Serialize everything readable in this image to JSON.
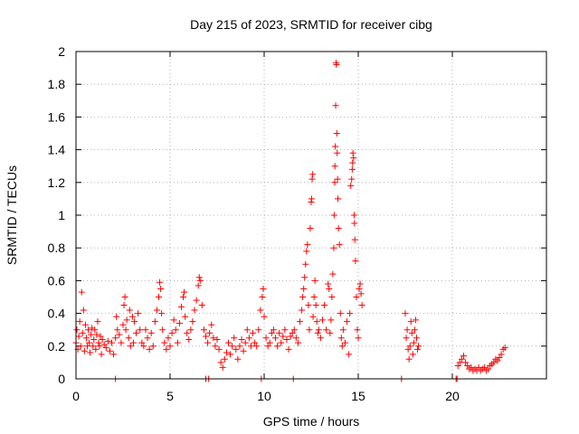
{
  "chart_data": {
    "type": "scatter",
    "title": "Day 215 of 2023, SRMTID for receiver cibg",
    "xlabel": "GPS time / hours",
    "ylabel": "SRMTID / TECUs",
    "xlim": [
      0,
      25
    ],
    "ylim": [
      0,
      2
    ],
    "grid": true,
    "marker": "+",
    "xticks": [
      0,
      5,
      10,
      15,
      20
    ],
    "xtick_labels": [
      "0",
      "5",
      "10",
      "15",
      "20"
    ],
    "yticks": [
      0,
      0.2,
      0.4,
      0.6,
      0.8,
      1,
      1.2,
      1.4,
      1.6,
      1.8,
      2
    ],
    "ytick_labels": [
      "0",
      "0.2",
      "0.4",
      "0.6",
      "0.8",
      "1",
      "1.2",
      "1.4",
      "1.6",
      "1.8",
      "2"
    ],
    "series": [
      {
        "name": "SRMTID",
        "color": "#ff0000",
        "points": [
          [
            0.0,
            0.22
          ],
          [
            0.05,
            0.3
          ],
          [
            0.1,
            0.18
          ],
          [
            0.15,
            0.26
          ],
          [
            0.2,
            0.35
          ],
          [
            0.25,
            0.2
          ],
          [
            0.3,
            0.53
          ],
          [
            0.35,
            0.28
          ],
          [
            0.4,
            0.42
          ],
          [
            0.45,
            0.17
          ],
          [
            0.5,
            0.33
          ],
          [
            0.55,
            0.25
          ],
          [
            0.6,
            0.2
          ],
          [
            0.65,
            0.3
          ],
          [
            0.7,
            0.22
          ],
          [
            0.75,
            0.16
          ],
          [
            0.8,
            0.27
          ],
          [
            0.85,
            0.31
          ],
          [
            0.9,
            0.2
          ],
          [
            0.95,
            0.24
          ],
          [
            1.0,
            0.3
          ],
          [
            1.05,
            0.18
          ],
          [
            1.1,
            0.27
          ],
          [
            1.15,
            0.35
          ],
          [
            1.2,
            0.22
          ],
          [
            1.25,
            0.2
          ],
          [
            1.3,
            0.26
          ],
          [
            1.35,
            0.15
          ],
          [
            1.4,
            0.24
          ],
          [
            1.5,
            0.21
          ],
          [
            1.6,
            0.19
          ],
          [
            1.7,
            0.23
          ],
          [
            1.8,
            0.17
          ],
          [
            1.9,
            0.22
          ],
          [
            2.0,
            0.15
          ],
          [
            2.1,
            0.25
          ],
          [
            2.15,
            0.38
          ],
          [
            2.2,
            0.3
          ],
          [
            2.3,
            0.27
          ],
          [
            2.4,
            0.22
          ],
          [
            2.5,
            0.33
          ],
          [
            2.55,
            0.45
          ],
          [
            2.6,
            0.5
          ],
          [
            2.65,
            0.3
          ],
          [
            2.7,
            0.36
          ],
          [
            2.8,
            0.25
          ],
          [
            2.85,
            0.42
          ],
          [
            2.9,
            0.2
          ],
          [
            3.0,
            0.38
          ],
          [
            3.05,
            0.22
          ],
          [
            3.1,
            0.35
          ],
          [
            3.2,
            0.28
          ],
          [
            3.3,
            0.4
          ],
          [
            3.4,
            0.3
          ],
          [
            3.5,
            0.22
          ],
          [
            3.6,
            0.2
          ],
          [
            3.7,
            0.3
          ],
          [
            3.8,
            0.25
          ],
          [
            3.9,
            0.18
          ],
          [
            4.0,
            0.28
          ],
          [
            4.1,
            0.2
          ],
          [
            4.2,
            0.35
          ],
          [
            4.3,
            0.42
          ],
          [
            4.4,
            0.5
          ],
          [
            4.45,
            0.59
          ],
          [
            4.5,
            0.55
          ],
          [
            4.55,
            0.4
          ],
          [
            4.6,
            0.3
          ],
          [
            4.7,
            0.22
          ],
          [
            4.8,
            0.18
          ],
          [
            4.9,
            0.25
          ],
          [
            5.0,
            0.2
          ],
          [
            5.1,
            0.28
          ],
          [
            5.2,
            0.36
          ],
          [
            5.3,
            0.3
          ],
          [
            5.4,
            0.22
          ],
          [
            5.5,
            0.34
          ],
          [
            5.6,
            0.44
          ],
          [
            5.7,
            0.5
          ],
          [
            5.75,
            0.53
          ],
          [
            5.8,
            0.38
          ],
          [
            5.9,
            0.28
          ],
          [
            6.0,
            0.24
          ],
          [
            6.1,
            0.3
          ],
          [
            6.2,
            0.35
          ],
          [
            6.3,
            0.42
          ],
          [
            6.4,
            0.48
          ],
          [
            6.5,
            0.57
          ],
          [
            6.55,
            0.62
          ],
          [
            6.6,
            0.6
          ],
          [
            6.7,
            0.45
          ],
          [
            6.8,
            0.3
          ],
          [
            6.9,
            0.26
          ],
          [
            7.0,
            0.22
          ],
          [
            7.1,
            0.28
          ],
          [
            7.2,
            0.33
          ],
          [
            7.3,
            0.25
          ],
          [
            7.4,
            0.2
          ],
          [
            7.5,
            0.24
          ],
          [
            7.6,
            0.18
          ],
          [
            7.7,
            0.1
          ],
          [
            7.8,
            0.07
          ],
          [
            7.9,
            0.12
          ],
          [
            8.0,
            0.16
          ],
          [
            8.1,
            0.22
          ],
          [
            8.2,
            0.15
          ],
          [
            8.3,
            0.2
          ],
          [
            8.4,
            0.25
          ],
          [
            8.5,
            0.18
          ],
          [
            8.6,
            0.12
          ],
          [
            8.7,
            0.2
          ],
          [
            8.8,
            0.24
          ],
          [
            8.9,
            0.17
          ],
          [
            9.0,
            0.22
          ],
          [
            9.1,
            0.3
          ],
          [
            9.2,
            0.25
          ],
          [
            9.3,
            0.2
          ],
          [
            9.4,
            0.28
          ],
          [
            9.5,
            0.22
          ],
          [
            9.6,
            0.2
          ],
          [
            9.7,
            0.3
          ],
          [
            9.8,
            0.42
          ],
          [
            9.9,
            0.5
          ],
          [
            9.95,
            0.55
          ],
          [
            10.0,
            0.38
          ],
          [
            10.1,
            0.25
          ],
          [
            10.2,
            0.2
          ],
          [
            10.3,
            0.22
          ],
          [
            10.4,
            0.28
          ],
          [
            10.5,
            0.3
          ],
          [
            10.6,
            0.25
          ],
          [
            10.7,
            0.2
          ],
          [
            10.8,
            0.28
          ],
          [
            10.9,
            0.22
          ],
          [
            11.0,
            0.26
          ],
          [
            11.1,
            0.3
          ],
          [
            11.2,
            0.24
          ],
          [
            11.3,
            0.18
          ],
          [
            11.4,
            0.26
          ],
          [
            11.5,
            0.28
          ],
          [
            11.6,
            0.3
          ],
          [
            11.7,
            0.25
          ],
          [
            11.8,
            0.22
          ],
          [
            11.9,
            0.35
          ],
          [
            12.0,
            0.42
          ],
          [
            12.05,
            0.5
          ],
          [
            12.1,
            0.55
          ],
          [
            12.15,
            0.62
          ],
          [
            12.2,
            0.7
          ],
          [
            12.25,
            0.78
          ],
          [
            12.3,
            0.82
          ],
          [
            12.35,
            0.45
          ],
          [
            12.4,
            0.3
          ],
          [
            12.45,
            0.92
          ],
          [
            12.5,
            1.08
          ],
          [
            12.52,
            1.1
          ],
          [
            12.55,
            1.22
          ],
          [
            12.58,
            1.25
          ],
          [
            12.6,
            0.38
          ],
          [
            12.65,
            0.5
          ],
          [
            12.7,
            0.6
          ],
          [
            12.75,
            0.45
          ],
          [
            12.8,
            0.35
          ],
          [
            12.85,
            0.28
          ],
          [
            12.9,
            0.3
          ],
          [
            13.0,
            0.25
          ],
          [
            13.1,
            0.36
          ],
          [
            13.2,
            0.45
          ],
          [
            13.3,
            0.3
          ],
          [
            13.4,
            0.58
          ],
          [
            13.45,
            0.55
          ],
          [
            13.5,
            0.28
          ],
          [
            13.55,
            0.36
          ],
          [
            13.6,
            0.5
          ],
          [
            13.65,
            0.64
          ],
          [
            13.7,
            0.8
          ],
          [
            13.72,
            1.0
          ],
          [
            13.75,
            1.2
          ],
          [
            13.76,
            1.3
          ],
          [
            13.78,
            1.42
          ],
          [
            13.8,
            1.67
          ],
          [
            13.82,
            1.93
          ],
          [
            13.84,
            1.92
          ],
          [
            13.86,
            1.5
          ],
          [
            13.88,
            1.38
          ],
          [
            13.9,
            1.22
          ],
          [
            13.92,
            1.1
          ],
          [
            13.95,
            0.92
          ],
          [
            14.0,
            0.82
          ],
          [
            14.05,
            0.4
          ],
          [
            14.1,
            0.25
          ],
          [
            14.15,
            0.2
          ],
          [
            14.2,
            0.3
          ],
          [
            14.3,
            0.22
          ],
          [
            14.4,
            0.35
          ],
          [
            14.5,
            0.15
          ],
          [
            14.55,
            0.4
          ],
          [
            14.6,
            1.18
          ],
          [
            14.65,
            1.22
          ],
          [
            14.68,
            1.28
          ],
          [
            14.7,
            1.32
          ],
          [
            14.72,
            1.38
          ],
          [
            14.75,
            1.35
          ],
          [
            14.78,
            1.0
          ],
          [
            14.8,
            0.95
          ],
          [
            14.82,
            0.85
          ],
          [
            14.85,
            0.72
          ],
          [
            14.9,
            0.5
          ],
          [
            14.95,
            0.3
          ],
          [
            15.0,
            0.25
          ],
          [
            15.05,
            0.55
          ],
          [
            15.1,
            0.58
          ],
          [
            15.15,
            0.52
          ],
          [
            15.2,
            0.45
          ],
          [
            17.5,
            0.4
          ],
          [
            17.55,
            0.25
          ],
          [
            17.6,
            0.3
          ],
          [
            17.65,
            0.18
          ],
          [
            17.7,
            0.12
          ],
          [
            17.75,
            0.2
          ],
          [
            17.8,
            0.35
          ],
          [
            17.85,
            0.28
          ],
          [
            17.9,
            0.15
          ],
          [
            17.95,
            0.22
          ],
          [
            18.0,
            0.3
          ],
          [
            18.05,
            0.36
          ],
          [
            18.1,
            0.25
          ],
          [
            18.15,
            0.18
          ],
          [
            18.2,
            0.2
          ],
          [
            20.3,
            0.08
          ],
          [
            20.4,
            0.1
          ],
          [
            20.5,
            0.12
          ],
          [
            20.6,
            0.14
          ],
          [
            20.7,
            0.1
          ],
          [
            20.8,
            0.08
          ],
          [
            20.9,
            0.06
          ],
          [
            21.0,
            0.07
          ],
          [
            21.1,
            0.05
          ],
          [
            21.2,
            0.06
          ],
          [
            21.3,
            0.05
          ],
          [
            21.4,
            0.07
          ],
          [
            21.5,
            0.05
          ],
          [
            21.6,
            0.06
          ],
          [
            21.7,
            0.07
          ],
          [
            21.8,
            0.05
          ],
          [
            21.9,
            0.06
          ],
          [
            22.0,
            0.08
          ],
          [
            22.1,
            0.09
          ],
          [
            22.2,
            0.1
          ],
          [
            22.3,
            0.12
          ],
          [
            22.4,
            0.11
          ],
          [
            22.5,
            0.13
          ],
          [
            22.6,
            0.15
          ],
          [
            22.7,
            0.18
          ],
          [
            22.8,
            0.19
          ],
          [
            2.1,
            0.0
          ],
          [
            6.9,
            0.0
          ],
          [
            7.05,
            0.0
          ],
          [
            9.85,
            0.0
          ],
          [
            11.55,
            0.0
          ],
          [
            17.3,
            0.0
          ],
          [
            20.2,
            0.0
          ],
          [
            20.25,
            0.0
          ]
        ]
      }
    ]
  }
}
